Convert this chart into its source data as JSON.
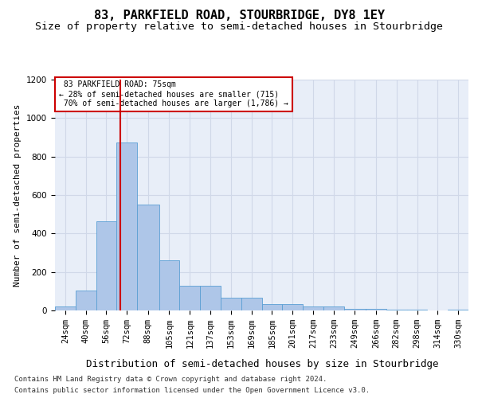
{
  "title1": "83, PARKFIELD ROAD, STOURBRIDGE, DY8 1EY",
  "title2": "Size of property relative to semi-detached houses in Stourbridge",
  "xlabel": "Distribution of semi-detached houses by size in Stourbridge",
  "ylabel": "Number of semi-detached properties",
  "footer1": "Contains HM Land Registry data © Crown copyright and database right 2024.",
  "footer2": "Contains public sector information licensed under the Open Government Licence v3.0.",
  "property_label": "83 PARKFIELD ROAD: 75sqm",
  "pct_smaller": 28,
  "n_smaller": 715,
  "pct_larger": 70,
  "n_larger": 1786,
  "bin_edges": [
    24,
    40,
    56,
    72,
    88,
    105,
    121,
    137,
    153,
    169,
    185,
    201,
    217,
    233,
    249,
    266,
    282,
    298,
    314,
    330,
    346
  ],
  "bar_heights": [
    20,
    105,
    465,
    875,
    550,
    260,
    130,
    130,
    65,
    65,
    35,
    35,
    20,
    20,
    10,
    10,
    5,
    5,
    0,
    5
  ],
  "bar_color": "#aec6e8",
  "bar_edge_color": "#5a9fd4",
  "vline_color": "#cc0000",
  "vline_x": 75,
  "ylim": [
    0,
    1200
  ],
  "yticks": [
    0,
    200,
    400,
    600,
    800,
    1000,
    1200
  ],
  "grid_color": "#d0d8e8",
  "bg_color": "#e8eef8",
  "annotation_box_color": "#cc0000",
  "title1_fontsize": 11,
  "title2_fontsize": 9.5,
  "xlabel_fontsize": 9,
  "ylabel_fontsize": 8,
  "tick_fontsize": 7.5,
  "footer_fontsize": 6.5
}
